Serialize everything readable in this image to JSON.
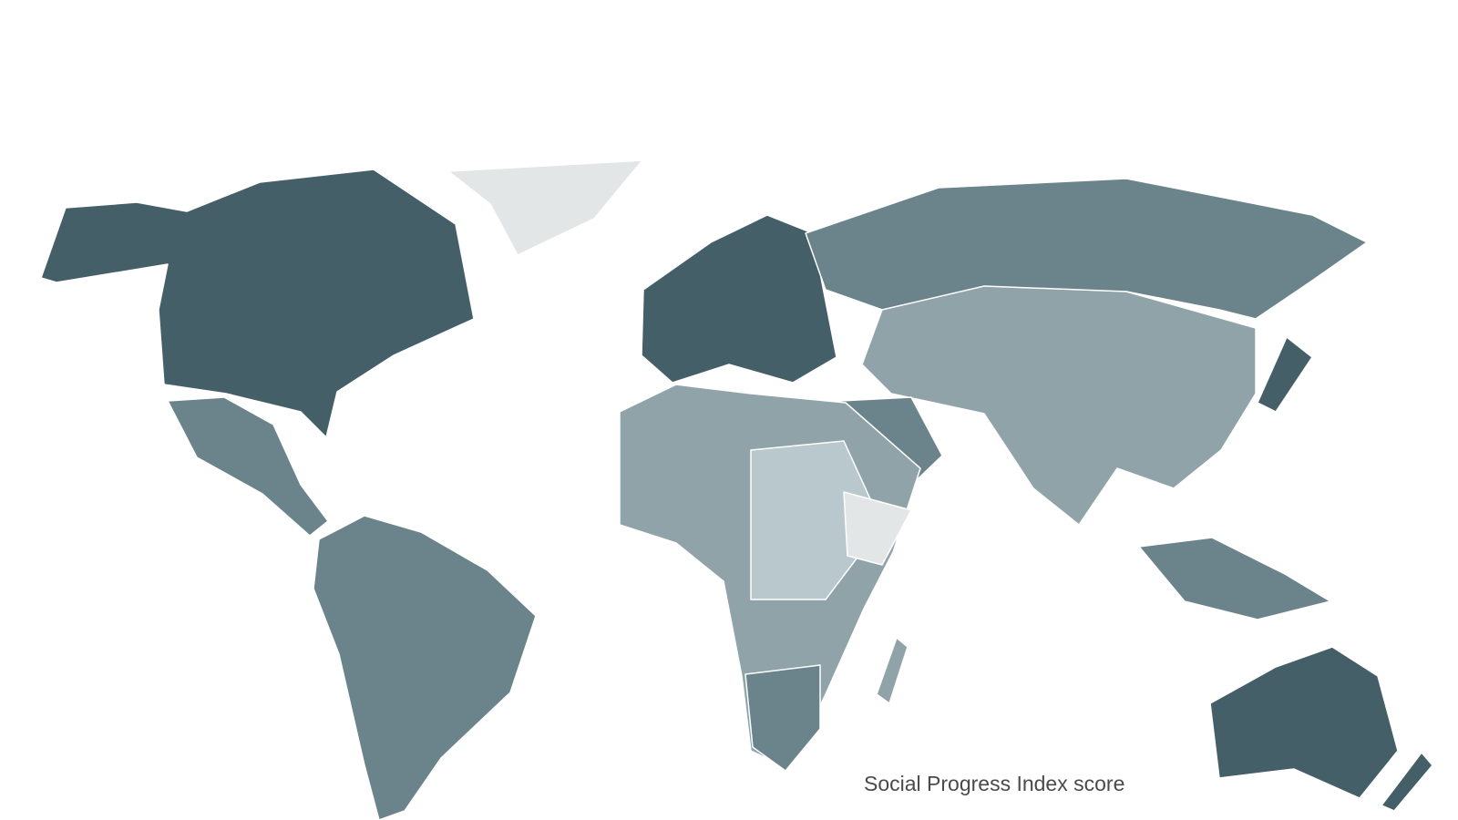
{
  "legend": {
    "title": "Social Progress Index score"
  }
}
